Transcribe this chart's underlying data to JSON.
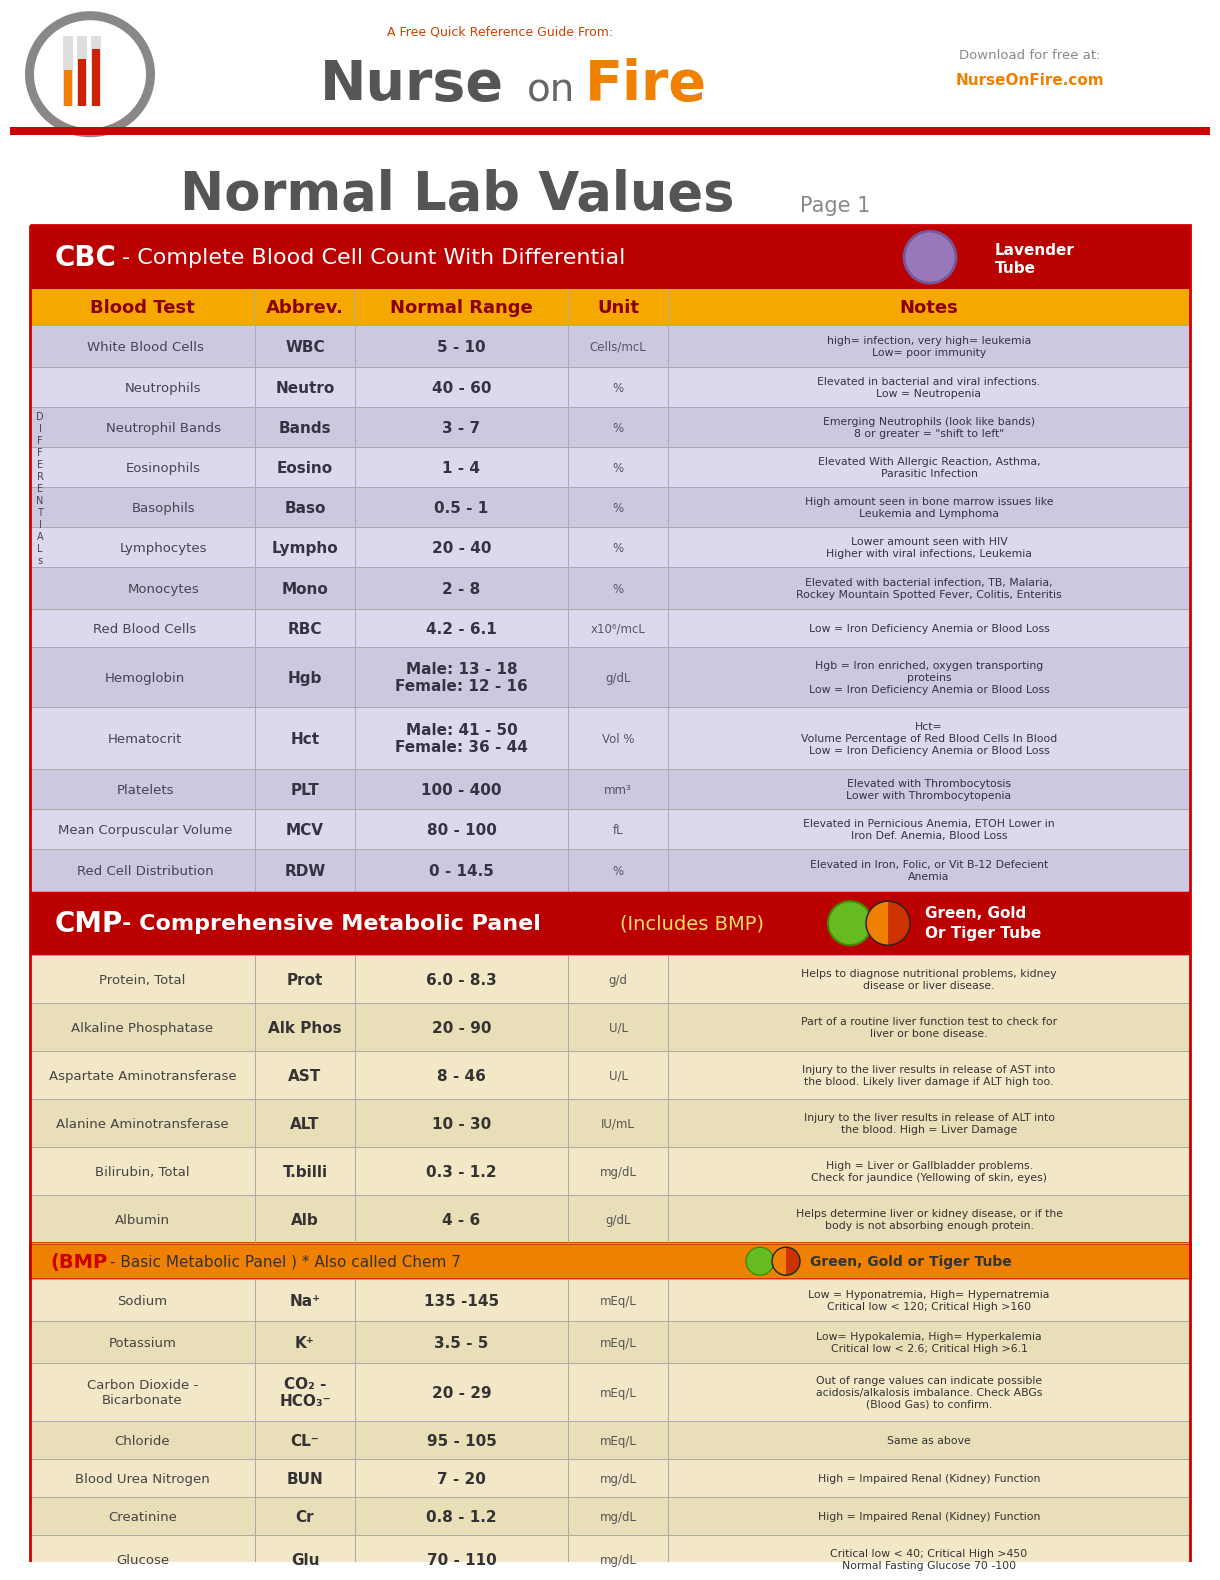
{
  "title_main": "Normal Lab Values",
  "page": "Page 1",
  "brand_tagline": "A Free Quick Reference Guide From:",
  "brand_nurse": "Nurse",
  "brand_on": "on",
  "brand_fire": "Fire",
  "brand_download": "Download for free at:",
  "brand_website": "NurseOnFire.com",
  "col_headers": [
    "Blood Test",
    "Abbrev.",
    "Normal Range",
    "Unit",
    "Notes"
  ],
  "header_bg": "#F5A800",
  "header_text": "#8B0000",
  "cbc_section_bg": "#BB0000",
  "cmp_section_bg": "#BB0000",
  "bmp_section_bg": "#F08000",
  "row_bg_a": "#CDC8E0",
  "row_bg_b": "#DDD8EE",
  "cmp_row_bg_a": "#F2E8C8",
  "cmp_row_bg_b": "#E8DEB8",
  "lavender_circle": "#8877AA",
  "green_circle": "#55AA22",
  "red_line": "#CC0000",
  "gray_line": "#AAAAAA",
  "cbc_rows": [
    {
      "name": "White Blood Cells",
      "abbrev": "WBC",
      "range": "5 - 10",
      "unit": "Cells/mcL",
      "notes": "high= infection, very high= leukemia\nLow= poor immunity",
      "is_diff": false,
      "bg": "a",
      "rh": 42
    },
    {
      "name": "Neutrophils",
      "abbrev": "Neutro",
      "range": "40 - 60",
      "unit": "%",
      "notes": "Elevated in bacterial and viral infections.\nLow = Neutropenia",
      "is_diff": true,
      "bg": "b",
      "rh": 40
    },
    {
      "name": "Neutrophil Bands",
      "abbrev": "Bands",
      "range": "3 - 7",
      "unit": "%",
      "notes": "Emerging Neutrophils (look like bands)\n8 or greater = \"shift to left\"",
      "is_diff": true,
      "bg": "a",
      "rh": 40
    },
    {
      "name": "Eosinophils",
      "abbrev": "Eosino",
      "range": "1 - 4",
      "unit": "%",
      "notes": "Elevated With Allergic Reaction, Asthma,\nParasitic Infection",
      "is_diff": true,
      "bg": "b",
      "rh": 40
    },
    {
      "name": "Basophils",
      "abbrev": "Baso",
      "range": "0.5 - 1",
      "unit": "%",
      "notes": "High amount seen in bone marrow issues like\nLeukemia and Lymphoma",
      "is_diff": true,
      "bg": "a",
      "rh": 40
    },
    {
      "name": "Lymphocytes",
      "abbrev": "Lympho",
      "range": "20 - 40",
      "unit": "%",
      "notes": "Lower amount seen with HIV\nHigher with viral infections, Leukemia",
      "is_diff": true,
      "bg": "b",
      "rh": 40
    },
    {
      "name": "Monocytes",
      "abbrev": "Mono",
      "range": "2 - 8",
      "unit": "%",
      "notes": "Elevated with bacterial infection, TB, Malaria,\nRockey Mountain Spotted Fever, Colitis, Enteritis",
      "is_diff": true,
      "bg": "a",
      "rh": 42
    },
    {
      "name": "Red Blood Cells",
      "abbrev": "RBC",
      "range": "4.2 - 6.1",
      "unit": "x10⁶/mcL",
      "notes": "Low = Iron Deficiency Anemia or Blood Loss",
      "is_diff": false,
      "bg": "b",
      "rh": 38
    },
    {
      "name": "Hemoglobin",
      "abbrev": "Hgb",
      "range": "Male: 13 - 18\nFemale: 12 - 16",
      "unit": "g/dL",
      "notes": "Hgb = Iron enriched, oxygen transporting\nproteins\nLow = Iron Deficiency Anemia or Blood Loss",
      "is_diff": false,
      "bg": "a",
      "rh": 60
    },
    {
      "name": "Hematocrit",
      "abbrev": "Hct",
      "range": "Male: 41 - 50\nFemale: 36 - 44",
      "unit": "Vol %",
      "notes": "Hct=\nVolume Percentage of Red Blood Cells In Blood\nLow = Iron Deficiency Anemia or Blood Loss",
      "is_diff": false,
      "bg": "b",
      "rh": 62
    },
    {
      "name": "Platelets",
      "abbrev": "PLT",
      "range": "100 - 400",
      "unit": "mm³",
      "notes": "Elevated with Thrombocytosis\nLower with Thrombocytopenia",
      "is_diff": false,
      "bg": "a",
      "rh": 40
    },
    {
      "name": "Mean Corpuscular Volume",
      "abbrev": "MCV",
      "range": "80 - 100",
      "unit": "fL",
      "notes": "Elevated in Pernicious Anemia, ETOH Lower in\nIron Def. Anemia, Blood Loss",
      "is_diff": false,
      "bg": "b",
      "rh": 40
    },
    {
      "name": "Red Cell Distribution",
      "abbrev": "RDW",
      "range": "0 - 14.5",
      "unit": "%",
      "notes": "Elevated in Iron, Folic, or Vit B-12 Defecient\nAnemia",
      "is_diff": false,
      "bg": "a",
      "rh": 42
    }
  ],
  "cmp_rows": [
    {
      "name": "Protein, Total",
      "abbrev": "Prot",
      "range": "6.0 - 8.3",
      "unit": "g/d",
      "notes": "Helps to diagnose nutritional problems, kidney\ndisease or liver disease.",
      "bg": "a",
      "rh": 48
    },
    {
      "name": "Alkaline Phosphatase",
      "abbrev": "Alk Phos",
      "range": "20 - 90",
      "unit": "U/L",
      "notes": "Part of a routine liver function test to check for\nliver or bone disease.",
      "bg": "b",
      "rh": 48
    },
    {
      "name": "Aspartate Aminotransferase",
      "abbrev": "AST",
      "range": "8 - 46",
      "unit": "U/L",
      "notes": "Injury to the liver results in release of AST into\nthe blood. Likely liver damage if ALT high too.",
      "bg": "a",
      "rh": 48
    },
    {
      "name": "Alanine Aminotransferase",
      "abbrev": "ALT",
      "range": "10 - 30",
      "unit": "IU/mL",
      "notes": "Injury to the liver results in release of ALT into\nthe blood. High = Liver Damage",
      "bg": "b",
      "rh": 48
    },
    {
      "name": "Bilirubin, Total",
      "abbrev": "T.billi",
      "range": "0.3 - 1.2",
      "unit": "mg/dL",
      "notes": "High = Liver or Gallbladder problems.\nCheck for jaundice (Yellowing of skin, eyes)",
      "bg": "a",
      "rh": 48
    },
    {
      "name": "Albumin",
      "abbrev": "Alb",
      "range": "4 - 6",
      "unit": "g/dL",
      "notes": "Helps determine liver or kidney disease, or if the\nbody is not absorbing enough protein.",
      "bg": "b",
      "rh": 48
    }
  ],
  "bmp_rows": [
    {
      "name": "Sodium",
      "abbrev": "Na⁺",
      "range": "135 -145",
      "unit": "mEq/L",
      "notes": "Low = Hyponatremia, High= Hypernatremia\nCritical low < 120; Critical High >160",
      "bg": "a",
      "rh": 42
    },
    {
      "name": "Potassium",
      "abbrev": "K⁺",
      "range": "3.5 - 5",
      "unit": "mEq/L",
      "notes": "Low= Hypokalemia, High= Hyperkalemia\nCritical low < 2.6; Critical High >6.1",
      "bg": "b",
      "rh": 42
    },
    {
      "name": "Carbon Dioxide -\nBicarbonate",
      "abbrev": "CO₂ -\nHCO₃⁻",
      "range": "20 - 29",
      "unit": "mEq/L",
      "notes": "Out of range values can indicate possible\nacidosis/alkalosis imbalance. Check ABGs\n(Blood Gas) to confirm.",
      "bg": "a",
      "rh": 58
    },
    {
      "name": "Chloride",
      "abbrev": "CL⁻",
      "range": "95 - 105",
      "unit": "mEq/L",
      "notes": "Same as above",
      "bg": "b",
      "rh": 38
    },
    {
      "name": "Blood Urea Nitrogen",
      "abbrev": "BUN",
      "range": "7 - 20",
      "unit": "mg/dL",
      "notes": "High = Impaired Renal (Kidney) Function",
      "bg": "a",
      "rh": 38
    },
    {
      "name": "Creatinine",
      "abbrev": "Cr",
      "range": "0.8 - 1.2",
      "unit": "mg/dL",
      "notes": "High = Impaired Renal (Kidney) Function",
      "bg": "b",
      "rh": 38
    },
    {
      "name": "Glucose",
      "abbrev": "Glu",
      "range": "70 - 110",
      "unit": "mg/dL",
      "notes": "Critical low < 40; Critical High >450\nNormal Fasting Glucose 70 -100",
      "bg": "a",
      "rh": 48
    }
  ]
}
